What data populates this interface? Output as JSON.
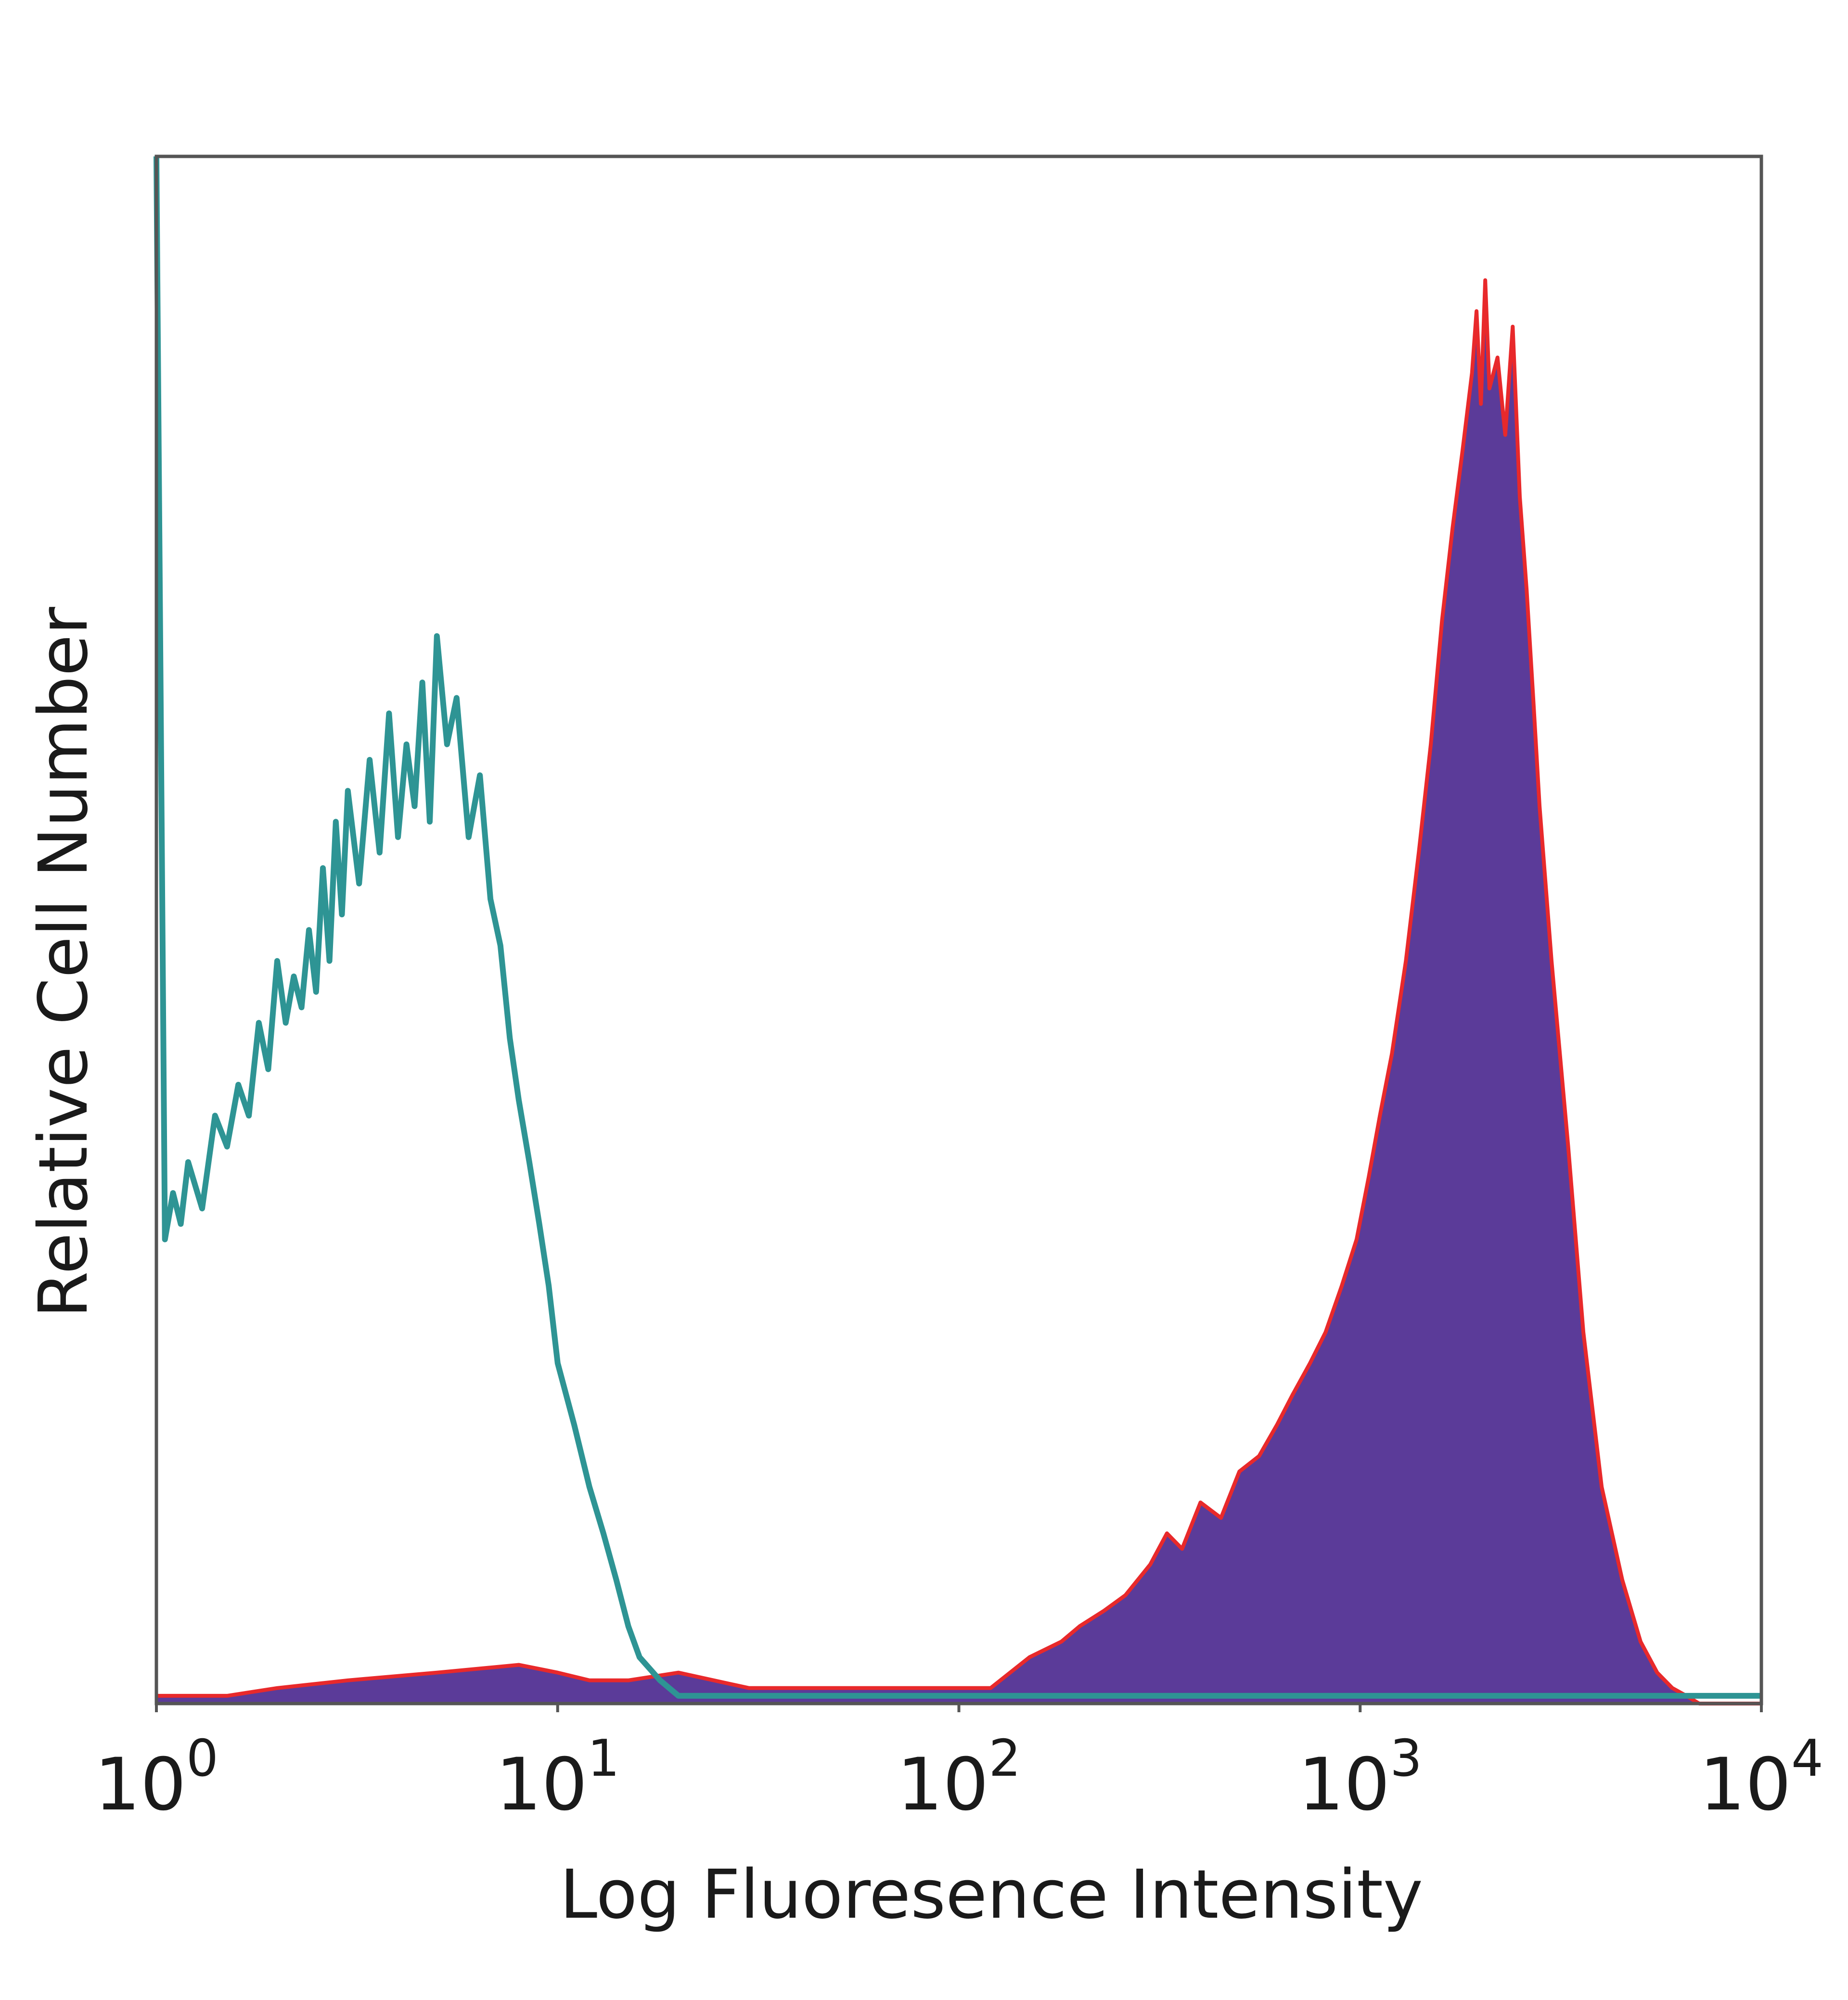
{
  "chart_data": {
    "type": "area",
    "title": "",
    "xlabel": "Log Fluoresence Intensity",
    "ylabel": "Relative Cell Number",
    "x_scale": "log",
    "xlim": [
      1,
      10000
    ],
    "ylim": [
      0,
      100
    ],
    "grid": false,
    "legend": "none",
    "x_ticks": [
      {
        "value": 1,
        "base": "10",
        "exp": "0"
      },
      {
        "value": 10,
        "base": "10",
        "exp": "1"
      },
      {
        "value": 100,
        "base": "10",
        "exp": "2"
      },
      {
        "value": 1000,
        "base": "10",
        "exp": "3"
      },
      {
        "value": 10000,
        "base": "10",
        "exp": "4"
      }
    ],
    "colors": {
      "isotype": "#2e9494",
      "stained_fill": "#5b3b99",
      "stained_outline": "#e8292b",
      "frame": "#555555"
    },
    "series": [
      {
        "kind": "line",
        "color_key": "isotype",
        "x": [
          1,
          1.05,
          1.1,
          1.15,
          1.2,
          1.3,
          1.4,
          1.5,
          1.6,
          1.7,
          1.8,
          1.9,
          2.0,
          2.1,
          2.2,
          2.3,
          2.4,
          2.5,
          2.6,
          2.7,
          2.8,
          2.9,
          3.0,
          3.2,
          3.4,
          3.6,
          3.8,
          4.0,
          4.2,
          4.4,
          4.6,
          4.8,
          5.0,
          5.3,
          5.6,
          6.0,
          6.4,
          6.8,
          7.2,
          7.6,
          8.0,
          8.5,
          9.0,
          9.5,
          10,
          11,
          12,
          13,
          14,
          15,
          16,
          18,
          20,
          25,
          30,
          40,
          60,
          100,
          10000
        ],
        "values": [
          100,
          30,
          33,
          31,
          35,
          32,
          38,
          36,
          40,
          38,
          44,
          41,
          48,
          44,
          47,
          45,
          50,
          46,
          54,
          48,
          57,
          51,
          59,
          53,
          61,
          55,
          64,
          56,
          62,
          58,
          66,
          57,
          69,
          62,
          65,
          56,
          60,
          52,
          49,
          43,
          39,
          35,
          31,
          27,
          22,
          18,
          14,
          11,
          8,
          5,
          3,
          1.5,
          0.5,
          0.5,
          0.5,
          0.5,
          0.5,
          0.5,
          0.5
        ]
      },
      {
        "kind": "filled",
        "fill_key": "stained_fill",
        "outline_key": "stained_outline",
        "x": [
          1,
          1.5,
          2,
          3,
          5,
          8,
          10,
          12,
          15,
          20,
          30,
          50,
          80,
          120,
          150,
          180,
          200,
          230,
          260,
          300,
          330,
          360,
          400,
          450,
          500,
          560,
          620,
          680,
          750,
          820,
          900,
          980,
          1050,
          1120,
          1200,
          1300,
          1400,
          1500,
          1600,
          1700,
          1800,
          1900,
          1950,
          2000,
          2050,
          2100,
          2200,
          2300,
          2400,
          2500,
          2600,
          2700,
          2800,
          3000,
          3300,
          3600,
          4000,
          4500,
          5000,
          5500,
          6000,
          6500,
          7000,
          10000
        ],
        "values": [
          0.5,
          0.5,
          1,
          1.5,
          2,
          2.5,
          2,
          1.5,
          1.5,
          2,
          1,
          1,
          1,
          1,
          3,
          4,
          5,
          6,
          7,
          9,
          11,
          10,
          13,
          12,
          15,
          16,
          18,
          20,
          22,
          24,
          27,
          30,
          34,
          38,
          42,
          48,
          55,
          62,
          70,
          76,
          81,
          86,
          90,
          84,
          92,
          85,
          87,
          82,
          89,
          78,
          72,
          65,
          58,
          48,
          36,
          24,
          14,
          8,
          4,
          2,
          1,
          0.5,
          0,
          0
        ]
      }
    ]
  }
}
